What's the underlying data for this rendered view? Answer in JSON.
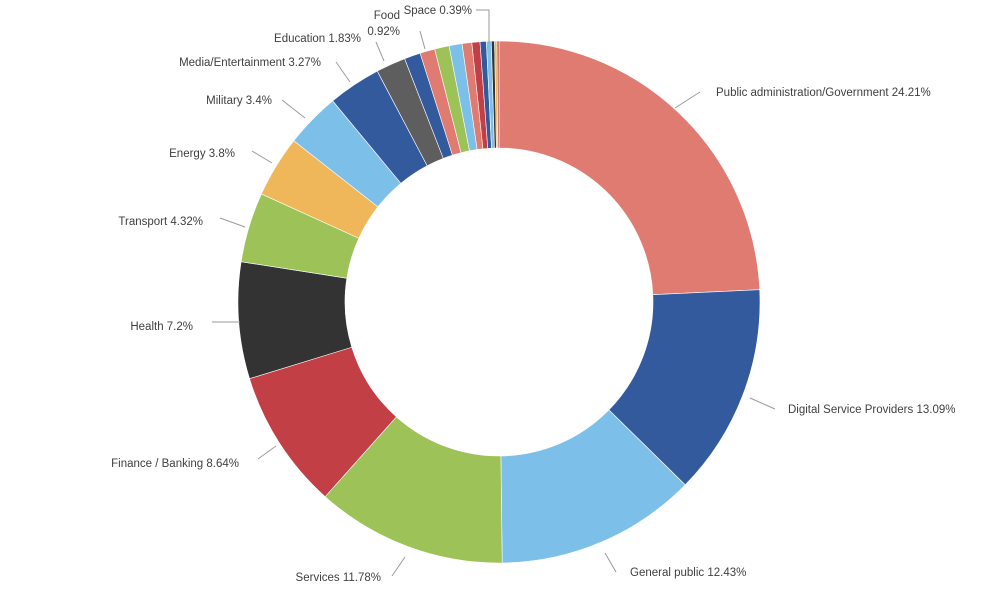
{
  "chart_data": {
    "type": "pie",
    "variant": "donut",
    "start_angle_deg": 0,
    "direction": "clockwise",
    "legend": "none",
    "slices": [
      {
        "label": "Public administration/Government",
        "value": 24.21,
        "display": "Public administration/Government 24.21%",
        "color": "#E07B72"
      },
      {
        "label": "Digital Service Providers",
        "value": 13.09,
        "display": "Digital Service Providers 13.09%",
        "color": "#345A9E"
      },
      {
        "label": "General public",
        "value": 12.43,
        "display": "General public 12.43%",
        "color": "#7CC0EA"
      },
      {
        "label": "Services",
        "value": 11.78,
        "display": "Services 11.78%",
        "color": "#9DC257"
      },
      {
        "label": "Finance / Banking",
        "value": 8.64,
        "display": "Finance / Banking 8.64%",
        "color": "#C13F45"
      },
      {
        "label": "Health",
        "value": 7.2,
        "display": "Health 7.2%",
        "color": "#333333"
      },
      {
        "label": "Transport",
        "value": 4.32,
        "display": "Transport 4.32%",
        "color": "#9DC257"
      },
      {
        "label": "Energy",
        "value": 3.8,
        "display": "Energy 3.8%",
        "color": "#EFB65A"
      },
      {
        "label": "Military",
        "value": 3.4,
        "display": "Military 3.4%",
        "color": "#7CC0EA"
      },
      {
        "label": "Media/Entertainment",
        "value": 3.27,
        "display": "Media/Entertainment 3.27%",
        "color": "#345A9E"
      },
      {
        "label": "Education",
        "value": 1.83,
        "display": "Education 1.83%",
        "color": "#5E5E5E"
      },
      {
        "label": "",
        "value": 1.0,
        "display": "",
        "color": "#345A9E"
      },
      {
        "label": "Food",
        "value": 0.92,
        "display": "Food 0.92%",
        "color": "#E07B72"
      },
      {
        "label": "",
        "value": 0.9,
        "display": "",
        "color": "#9DC257"
      },
      {
        "label": "",
        "value": 0.8,
        "display": "",
        "color": "#7CC0EA"
      },
      {
        "label": "",
        "value": 0.6,
        "display": "",
        "color": "#E07B72"
      },
      {
        "label": "",
        "value": 0.5,
        "display": "",
        "color": "#C13F45"
      },
      {
        "label": "Space",
        "value": 0.39,
        "display": "Space 0.39%",
        "color": "#345A9E"
      },
      {
        "label": "",
        "value": 0.3,
        "display": "",
        "color": "#7CC0EA"
      },
      {
        "label": "",
        "value": 0.2,
        "display": "",
        "color": "#333333"
      },
      {
        "label": "",
        "value": 0.15,
        "display": "",
        "color": "#EFB65A"
      },
      {
        "label": "",
        "value": 0.12,
        "display": "",
        "color": "#C13F45"
      }
    ]
  }
}
